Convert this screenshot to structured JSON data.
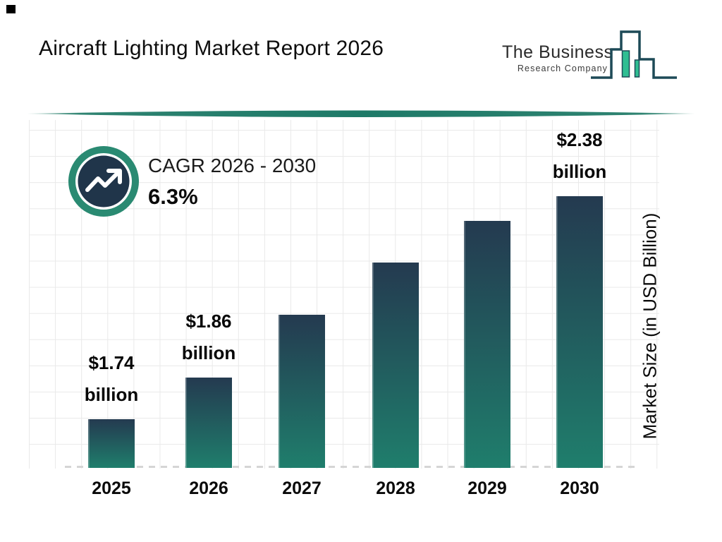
{
  "header": {
    "title": "Aircraft Lighting Market Report 2026",
    "logo": {
      "name_line1": "The Business",
      "name_line2": "Research Company"
    }
  },
  "cagr": {
    "label": "CAGR 2026 - 2030",
    "value": "6.3%"
  },
  "chart_data": {
    "type": "bar",
    "title": "Aircraft Lighting Market Report 2026",
    "categories": [
      "2025",
      "2026",
      "2027",
      "2028",
      "2029",
      "2030"
    ],
    "values": [
      1.74,
      1.86,
      2.04,
      2.19,
      2.31,
      2.38
    ],
    "bars": [
      {
        "year": "2025",
        "value": 1.74,
        "label_line1": "$1.74",
        "label_line2": "billion"
      },
      {
        "year": "2026",
        "value": 1.86,
        "label_line1": "$1.86",
        "label_line2": "billion"
      },
      {
        "year": "2027",
        "value": 2.04,
        "label_line1": "",
        "label_line2": ""
      },
      {
        "year": "2028",
        "value": 2.19,
        "label_line1": "",
        "label_line2": ""
      },
      {
        "year": "2029",
        "value": 2.31,
        "label_line1": "",
        "label_line2": ""
      },
      {
        "year": "2030",
        "value": 2.38,
        "label_line1": "$2.38",
        "label_line2": "billion"
      }
    ],
    "labeled_points": [
      {
        "category": "2025",
        "label": "$1.74 billion"
      },
      {
        "category": "2026",
        "label": "$1.86 billion"
      },
      {
        "category": "2030",
        "label": "$2.38 billion"
      }
    ],
    "xlabel": "",
    "ylabel": "Market Size (in USD Billion)",
    "unit": "USD Billion",
    "ylim": [
      1.6,
      2.6
    ],
    "grid": true,
    "legend": "none",
    "bar_gradient_top": "#243a50",
    "bar_gradient_bottom": "#1f7e6c"
  },
  "colors": {
    "accent_teal": "#1f7a68",
    "ring_teal": "#2a8a72",
    "navy_disc": "#20354a",
    "logo_green": "#2fbe92",
    "logo_outline": "#1d4a57",
    "grid_line": "#e9e9e9",
    "baseline_dash": "#d5d5d5"
  },
  "icons": {
    "cagr_icon": "trend-up-arrow-in-circle",
    "logo_icon": "bar-chart-skyline"
  }
}
